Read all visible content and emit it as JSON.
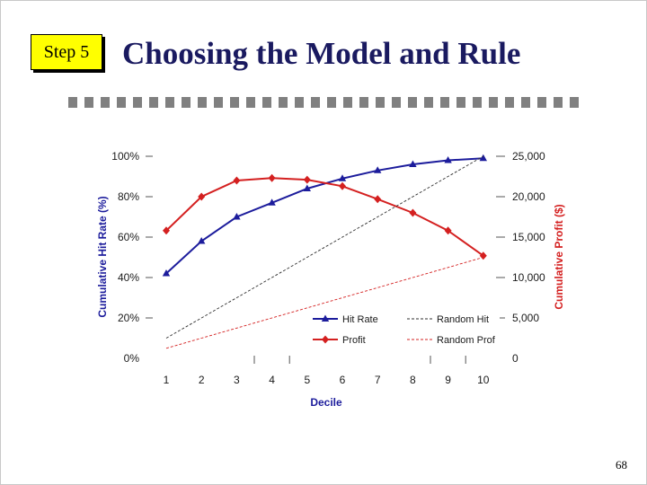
{
  "slide": {
    "step_label": "Step 5",
    "title": "Choosing the Model and Rule",
    "page_number": "68"
  },
  "colors": {
    "hit_rate": "#1c1c9c",
    "profit": "#d42020",
    "random_hit": "#303030",
    "random_profit": "#d42020",
    "badge": "#ffff00"
  },
  "chart_data": {
    "type": "line",
    "xlabel": "Decile",
    "ylabel": "Cumulative Hit Rate (%)",
    "y2label": "Cumulative Profit ($)",
    "categories": [
      1,
      2,
      3,
      4,
      5,
      6,
      7,
      8,
      9,
      10
    ],
    "x_tick_labels": [
      "1",
      "2",
      "3",
      "4",
      "5",
      "6",
      "7",
      "8",
      "9",
      "10"
    ],
    "ylim": [
      0,
      100
    ],
    "y_ticks": [
      0,
      20,
      40,
      60,
      80,
      100
    ],
    "y_tick_labels": [
      "0%",
      "20%",
      "40%",
      "60%",
      "80%",
      "100%"
    ],
    "y2lim": [
      0,
      25000
    ],
    "y2_ticks": [
      0,
      5000,
      10000,
      15000,
      20000,
      25000
    ],
    "y2_tick_labels": [
      "0",
      "5,000",
      "10,000",
      "15,000",
      "20,000",
      "25,000"
    ],
    "legend_position": "lower-right",
    "grid": false,
    "series": [
      {
        "name": "Hit Rate",
        "axis": "left",
        "marker": "triangle",
        "style": "solid",
        "color_key": "hit_rate",
        "values": [
          42,
          58,
          70,
          77,
          84,
          89,
          93,
          96,
          98,
          99
        ]
      },
      {
        "name": "Profit",
        "axis": "right",
        "marker": "diamond",
        "style": "solid",
        "color_key": "profit",
        "values": [
          15800,
          20000,
          22000,
          22300,
          22100,
          21300,
          19700,
          18000,
          15800,
          12700
        ]
      },
      {
        "name": "Random Hit",
        "axis": "left",
        "marker": "none",
        "style": "dashed",
        "color_key": "random_hit",
        "values": [
          10,
          20,
          30,
          40,
          50,
          60,
          70,
          80,
          90,
          100
        ]
      },
      {
        "name": "Random Prof",
        "axis": "left",
        "marker": "none",
        "style": "dashed",
        "color_key": "random_profit",
        "values": [
          5,
          10,
          15,
          20,
          25,
          30,
          35,
          40,
          45,
          50
        ]
      }
    ]
  }
}
